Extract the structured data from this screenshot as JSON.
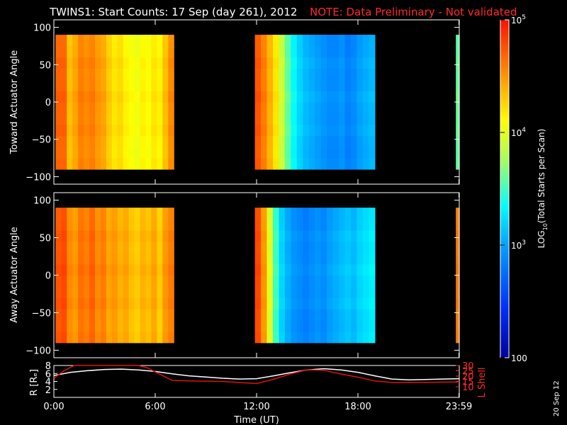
{
  "title": "TWINS1: Start Counts: 17 Sep (day 261), 2012",
  "note": "NOTE: Data Preliminary - Not validated",
  "date_stamp": "20 Sep 12",
  "colors": {
    "background": "#000000",
    "axes": "#ffffff",
    "note": "#ff2a2a",
    "r_line": "#ffffff",
    "l_shell_line": "#e01010"
  },
  "chart_data": [
    {
      "type": "heatmap",
      "name": "toward",
      "ylabel": "Toward Actuator Angle",
      "xlabel": "",
      "xlim": [
        0,
        24
      ],
      "ylim": [
        -110,
        110
      ],
      "yticks": [
        -100,
        -50,
        0,
        50,
        100
      ],
      "ytick_labels": [
        "−100",
        "−50",
        "0",
        "50",
        "100"
      ],
      "angle_range": [
        -90,
        90
      ],
      "data_segments": [
        {
          "start": 0.1,
          "end": 7.1,
          "log_counts": [
            4.7,
            4.7,
            4.35,
            4.45,
            4.6,
            4.55,
            4.6,
            4.5,
            4.45,
            4.3,
            4.2,
            4.25,
            4.15,
            4.1,
            4.05,
            4.15,
            4.1,
            4.2,
            4.15,
            4.35,
            4.55
          ]
        },
        {
          "start": 11.9,
          "end": 19.0,
          "log_counts": [
            4.75,
            4.6,
            4.4,
            4.2,
            3.9,
            3.6,
            3.35,
            3.2,
            3.1,
            3.05,
            3.0,
            2.95,
            2.9,
            2.9,
            2.95,
            2.85,
            2.9,
            3.0,
            3.05,
            3.1
          ]
        },
        {
          "start": 23.8,
          "end": 24.0,
          "log_counts": [
            3.6
          ]
        }
      ]
    },
    {
      "type": "heatmap",
      "name": "away",
      "ylabel": "Away Actuator Angle",
      "xlabel": "",
      "xlim": [
        0,
        24
      ],
      "ylim": [
        -110,
        110
      ],
      "yticks": [
        -100,
        -50,
        0,
        50,
        100
      ],
      "ytick_labels": [
        "−100",
        "−50",
        "0",
        "50",
        "100"
      ],
      "angle_range": [
        -90,
        90
      ],
      "data_segments": [
        {
          "start": 0.1,
          "end": 7.1,
          "log_counts": [
            4.75,
            4.8,
            4.55,
            4.5,
            4.65,
            4.6,
            4.7,
            4.55,
            4.6,
            4.45,
            4.5,
            4.4,
            4.45,
            4.35,
            4.3,
            4.4,
            4.35,
            4.45,
            4.3,
            4.5,
            4.6
          ]
        },
        {
          "start": 11.9,
          "end": 19.0,
          "log_counts": [
            4.8,
            4.5,
            4.0,
            3.5,
            3.2,
            3.05,
            2.95,
            2.9,
            2.85,
            2.9,
            2.95,
            2.9,
            3.0,
            3.05,
            3.1,
            3.15,
            3.1,
            3.2,
            3.25,
            3.3
          ]
        },
        {
          "start": 23.8,
          "end": 24.0,
          "log_counts": [
            4.6
          ]
        }
      ]
    },
    {
      "type": "line",
      "name": "orbit",
      "ylabel": "R [Rₑ]",
      "ylabel2": "L Shell",
      "xlabel": "Time (UT)",
      "xlim": [
        0,
        24
      ],
      "x_ticks": [
        0,
        6,
        12,
        18,
        23.98
      ],
      "x_tick_labels": [
        "0:00",
        "6:00",
        "12:00",
        "18:00",
        "23:59"
      ],
      "ylim": [
        0,
        8
      ],
      "yticks": [
        2,
        4,
        6,
        8
      ],
      "ylim2": [
        0,
        30
      ],
      "yticks2": [
        10,
        15,
        20,
        25,
        30
      ],
      "series": [
        {
          "name": "R [Rₑ]",
          "axis": "left",
          "color": "#ffffff",
          "x": [
            0,
            1,
            2,
            3,
            4,
            5,
            6,
            7,
            8,
            9,
            10,
            11,
            12,
            13,
            14,
            15,
            16,
            17,
            18,
            19,
            20,
            21,
            22,
            23,
            24
          ],
          "y": [
            5.5,
            6.3,
            6.7,
            7.0,
            7.1,
            6.9,
            6.5,
            5.9,
            5.4,
            5.1,
            4.8,
            4.6,
            4.7,
            5.4,
            6.2,
            6.9,
            7.2,
            6.9,
            6.3,
            5.4,
            4.6,
            4.4,
            4.5,
            4.6,
            4.7
          ]
        },
        {
          "name": "L Shell",
          "axis": "right",
          "color": "#e01010",
          "x": [
            0,
            0.6,
            1.2,
            5.0,
            5.5,
            7.0,
            8,
            10,
            12,
            13,
            14,
            15,
            16,
            17,
            18,
            19,
            20,
            22,
            24
          ],
          "y": [
            18,
            25,
            32,
            32,
            28,
            16,
            15.5,
            15,
            13,
            17,
            22,
            26,
            25.5,
            22,
            19,
            15.5,
            14,
            14.2,
            14.5
          ]
        }
      ]
    }
  ],
  "colorbar": {
    "label_prefix": "LOG",
    "label_sub": "10",
    "label_rest": "(Total Starts per Scan)",
    "ticks": [
      {
        "base": "10",
        "exp": "5",
        "value": 5
      },
      {
        "base": "10",
        "exp": "4",
        "value": 4
      },
      {
        "base": "10",
        "exp": "3",
        "value": 3
      },
      {
        "base": "100",
        "exp": "",
        "value": 2
      }
    ],
    "range": [
      2,
      5
    ]
  }
}
